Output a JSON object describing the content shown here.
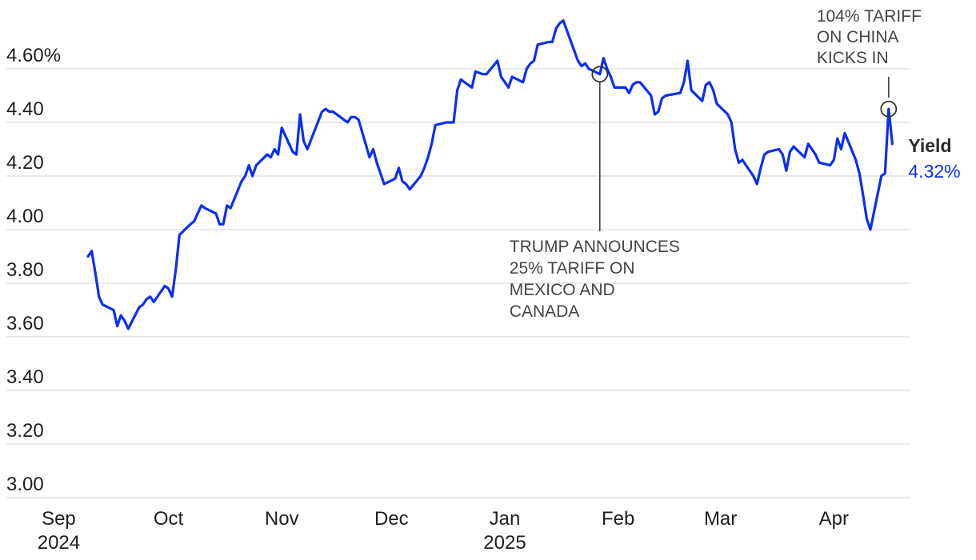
{
  "chart_data": {
    "type": "line",
    "y_tick_labels": [
      "3.00",
      "3.20",
      "3.40",
      "3.60",
      "3.80",
      "4.00",
      "4.20",
      "4.40",
      "4.60%"
    ],
    "y_ticks": [
      3.0,
      3.2,
      3.4,
      3.6,
      3.8,
      4.0,
      4.2,
      4.4,
      4.6
    ],
    "ylim": [
      2.95,
      4.8
    ],
    "x_ticks": [
      {
        "date": "2024-09-01",
        "label": "Sep",
        "sub": "2024"
      },
      {
        "date": "2024-10-01",
        "label": "Oct",
        "sub": ""
      },
      {
        "date": "2024-11-01",
        "label": "Nov",
        "sub": ""
      },
      {
        "date": "2024-12-01",
        "label": "Dec",
        "sub": ""
      },
      {
        "date": "2025-01-01",
        "label": "Jan",
        "sub": "2025"
      },
      {
        "date": "2025-02-01",
        "label": "Feb",
        "sub": ""
      },
      {
        "date": "2025-03-01",
        "label": "Mar",
        "sub": ""
      },
      {
        "date": "2025-04-01",
        "label": "Apr",
        "sub": ""
      }
    ],
    "series": [
      {
        "name": "Yield",
        "color": "#0a2ff0",
        "last_value_label": "4.32%",
        "points": [
          [
            "2024-09-09",
            3.9
          ],
          [
            "2024-09-10",
            3.92
          ],
          [
            "2024-09-11",
            3.84
          ],
          [
            "2024-09-12",
            3.75
          ],
          [
            "2024-09-13",
            3.72
          ],
          [
            "2024-09-16",
            3.7
          ],
          [
            "2024-09-17",
            3.64
          ],
          [
            "2024-09-18",
            3.68
          ],
          [
            "2024-09-19",
            3.66
          ],
          [
            "2024-09-20",
            3.63
          ],
          [
            "2024-09-23",
            3.71
          ],
          [
            "2024-09-24",
            3.72
          ],
          [
            "2024-09-25",
            3.74
          ],
          [
            "2024-09-26",
            3.75
          ],
          [
            "2024-09-27",
            3.73
          ],
          [
            "2024-09-30",
            3.79
          ],
          [
            "2024-10-01",
            3.78
          ],
          [
            "2024-10-02",
            3.75
          ],
          [
            "2024-10-03",
            3.85
          ],
          [
            "2024-10-04",
            3.98
          ],
          [
            "2024-10-07",
            4.02
          ],
          [
            "2024-10-08",
            4.03
          ],
          [
            "2024-10-09",
            4.06
          ],
          [
            "2024-10-10",
            4.09
          ],
          [
            "2024-10-11",
            4.08
          ],
          [
            "2024-10-14",
            4.06
          ],
          [
            "2024-10-15",
            4.02
          ],
          [
            "2024-10-16",
            4.02
          ],
          [
            "2024-10-17",
            4.09
          ],
          [
            "2024-10-18",
            4.08
          ],
          [
            "2024-10-21",
            4.18
          ],
          [
            "2024-10-22",
            4.2
          ],
          [
            "2024-10-23",
            4.24
          ],
          [
            "2024-10-24",
            4.2
          ],
          [
            "2024-10-25",
            4.24
          ],
          [
            "2024-10-28",
            4.28
          ],
          [
            "2024-10-29",
            4.27
          ],
          [
            "2024-10-30",
            4.3
          ],
          [
            "2024-10-31",
            4.28
          ],
          [
            "2024-11-01",
            4.38
          ],
          [
            "2024-11-04",
            4.29
          ],
          [
            "2024-11-05",
            4.28
          ],
          [
            "2024-11-06",
            4.43
          ],
          [
            "2024-11-07",
            4.33
          ],
          [
            "2024-11-08",
            4.3
          ],
          [
            "2024-11-12",
            4.44
          ],
          [
            "2024-11-13",
            4.45
          ],
          [
            "2024-11-14",
            4.44
          ],
          [
            "2024-11-15",
            4.44
          ],
          [
            "2024-11-18",
            4.41
          ],
          [
            "2024-11-19",
            4.4
          ],
          [
            "2024-11-20",
            4.42
          ],
          [
            "2024-11-21",
            4.42
          ],
          [
            "2024-11-22",
            4.41
          ],
          [
            "2024-11-25",
            4.27
          ],
          [
            "2024-11-26",
            4.3
          ],
          [
            "2024-11-27",
            4.25
          ],
          [
            "2024-11-29",
            4.17
          ],
          [
            "2024-12-02",
            4.19
          ],
          [
            "2024-12-03",
            4.23
          ],
          [
            "2024-12-04",
            4.18
          ],
          [
            "2024-12-05",
            4.17
          ],
          [
            "2024-12-06",
            4.15
          ],
          [
            "2024-12-09",
            4.2
          ],
          [
            "2024-12-10",
            4.23
          ],
          [
            "2024-12-11",
            4.27
          ],
          [
            "2024-12-12",
            4.32
          ],
          [
            "2024-12-13",
            4.39
          ],
          [
            "2024-12-16",
            4.4
          ],
          [
            "2024-12-17",
            4.4
          ],
          [
            "2024-12-18",
            4.4
          ],
          [
            "2024-12-19",
            4.52
          ],
          [
            "2024-12-20",
            4.56
          ],
          [
            "2024-12-23",
            4.53
          ],
          [
            "2024-12-24",
            4.59
          ],
          [
            "2024-12-26",
            4.58
          ],
          [
            "2024-12-27",
            4.58
          ],
          [
            "2024-12-30",
            4.63
          ],
          [
            "2024-12-31",
            4.57
          ],
          [
            "2025-01-02",
            4.53
          ],
          [
            "2025-01-03",
            4.57
          ],
          [
            "2025-01-06",
            4.55
          ],
          [
            "2025-01-07",
            4.6
          ],
          [
            "2025-01-08",
            4.62
          ],
          [
            "2025-01-09",
            4.63
          ],
          [
            "2025-01-10",
            4.69
          ],
          [
            "2025-01-13",
            4.7
          ],
          [
            "2025-01-14",
            4.7
          ],
          [
            "2025-01-15",
            4.75
          ],
          [
            "2025-01-16",
            4.77
          ],
          [
            "2025-01-17",
            4.78
          ],
          [
            "2025-01-21",
            4.63
          ],
          [
            "2025-01-22",
            4.61
          ],
          [
            "2025-01-23",
            4.62
          ],
          [
            "2025-01-24",
            4.6
          ],
          [
            "2025-01-27",
            4.58
          ],
          [
            "2025-01-28",
            4.64
          ],
          [
            "2025-01-29",
            4.6
          ],
          [
            "2025-01-30",
            4.57
          ],
          [
            "2025-01-31",
            4.53
          ],
          [
            "2025-02-03",
            4.53
          ],
          [
            "2025-02-04",
            4.51
          ],
          [
            "2025-02-05",
            4.54
          ],
          [
            "2025-02-06",
            4.55
          ],
          [
            "2025-02-07",
            4.55
          ],
          [
            "2025-02-10",
            4.5
          ],
          [
            "2025-02-11",
            4.43
          ],
          [
            "2025-02-12",
            4.44
          ],
          [
            "2025-02-13",
            4.49
          ],
          [
            "2025-02-14",
            4.5
          ],
          [
            "2025-02-18",
            4.51
          ],
          [
            "2025-02-19",
            4.55
          ],
          [
            "2025-02-20",
            4.63
          ],
          [
            "2025-02-21",
            4.52
          ],
          [
            "2025-02-24",
            4.48
          ],
          [
            "2025-02-25",
            4.54
          ],
          [
            "2025-02-26",
            4.55
          ],
          [
            "2025-02-27",
            4.52
          ],
          [
            "2025-02-28",
            4.47
          ],
          [
            "2025-03-03",
            4.43
          ],
          [
            "2025-03-04",
            4.4
          ],
          [
            "2025-03-05",
            4.3
          ],
          [
            "2025-03-06",
            4.25
          ],
          [
            "2025-03-07",
            4.26
          ],
          [
            "2025-03-10",
            4.2
          ],
          [
            "2025-03-11",
            4.17
          ],
          [
            "2025-03-12",
            4.23
          ],
          [
            "2025-03-13",
            4.28
          ],
          [
            "2025-03-14",
            4.29
          ],
          [
            "2025-03-17",
            4.3
          ],
          [
            "2025-03-18",
            4.28
          ],
          [
            "2025-03-19",
            4.22
          ],
          [
            "2025-03-20",
            4.29
          ],
          [
            "2025-03-21",
            4.31
          ],
          [
            "2025-03-24",
            4.27
          ],
          [
            "2025-03-25",
            4.32
          ],
          [
            "2025-03-26",
            4.3
          ],
          [
            "2025-03-27",
            4.28
          ],
          [
            "2025-03-28",
            4.25
          ],
          [
            "2025-03-31",
            4.24
          ],
          [
            "2025-04-01",
            4.26
          ],
          [
            "2025-04-02",
            4.34
          ],
          [
            "2025-04-03",
            4.3
          ],
          [
            "2025-04-04",
            4.36
          ],
          [
            "2025-04-07",
            4.26
          ],
          [
            "2025-04-08",
            4.21
          ],
          [
            "2025-04-09",
            4.13
          ],
          [
            "2025-04-10",
            4.04
          ],
          [
            "2025-04-11",
            4.0
          ],
          [
            "2025-04-14",
            4.2
          ],
          [
            "2025-04-15",
            4.21
          ],
          [
            "2025-04-16",
            4.45
          ],
          [
            "2025-04-17",
            4.32
          ]
        ]
      }
    ],
    "annotations": [
      {
        "date": "2025-01-27",
        "value": 4.58,
        "lines": [
          "TRUMP ANNOUNCES",
          "25% TARIFF ON",
          "MEXICO AND",
          "CANADA"
        ],
        "position": "below"
      },
      {
        "date": "2025-04-16",
        "value": 4.45,
        "lines": [
          "104% TARIFF",
          "ON CHINA",
          "KICKS IN"
        ],
        "position": "above"
      }
    ],
    "grid": true,
    "legend": "end-of-line label"
  }
}
